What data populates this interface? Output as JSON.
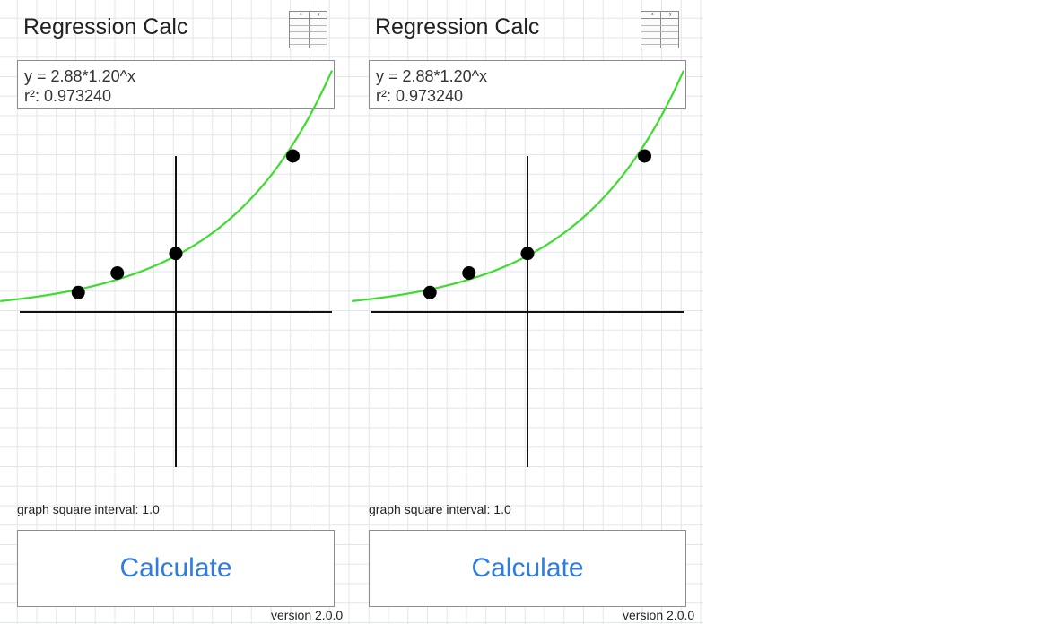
{
  "app": {
    "title": "Regression Calc",
    "version": "version 2.0.0"
  },
  "table_icon": {
    "column_headers": [
      "x",
      "y"
    ]
  },
  "result": {
    "equation": "y = 2.88*1.20^x",
    "r_squared_label": "r²: 0.973240"
  },
  "graph": {
    "interval_label": "graph square interval: 1.0"
  },
  "actions": {
    "calculate_label": "Calculate"
  },
  "colors": {
    "curve": "#3ddc2e",
    "points": "#000000",
    "axes": "#111111",
    "grid": "#e2e5ec",
    "button_text": "#2f7de1"
  },
  "chart_data": {
    "type": "scatter",
    "regression": {
      "model": "exponential",
      "a": 2.88,
      "b": 1.2,
      "r_squared": 0.97324
    },
    "points": [
      {
        "x": -5,
        "y": 1
      },
      {
        "x": -3,
        "y": 2
      },
      {
        "x": 0,
        "y": 3
      },
      {
        "x": 6,
        "y": 8
      }
    ],
    "xlim": [
      -9,
      8
    ],
    "ylim": [
      -8.5,
      8
    ],
    "grid": true
  }
}
